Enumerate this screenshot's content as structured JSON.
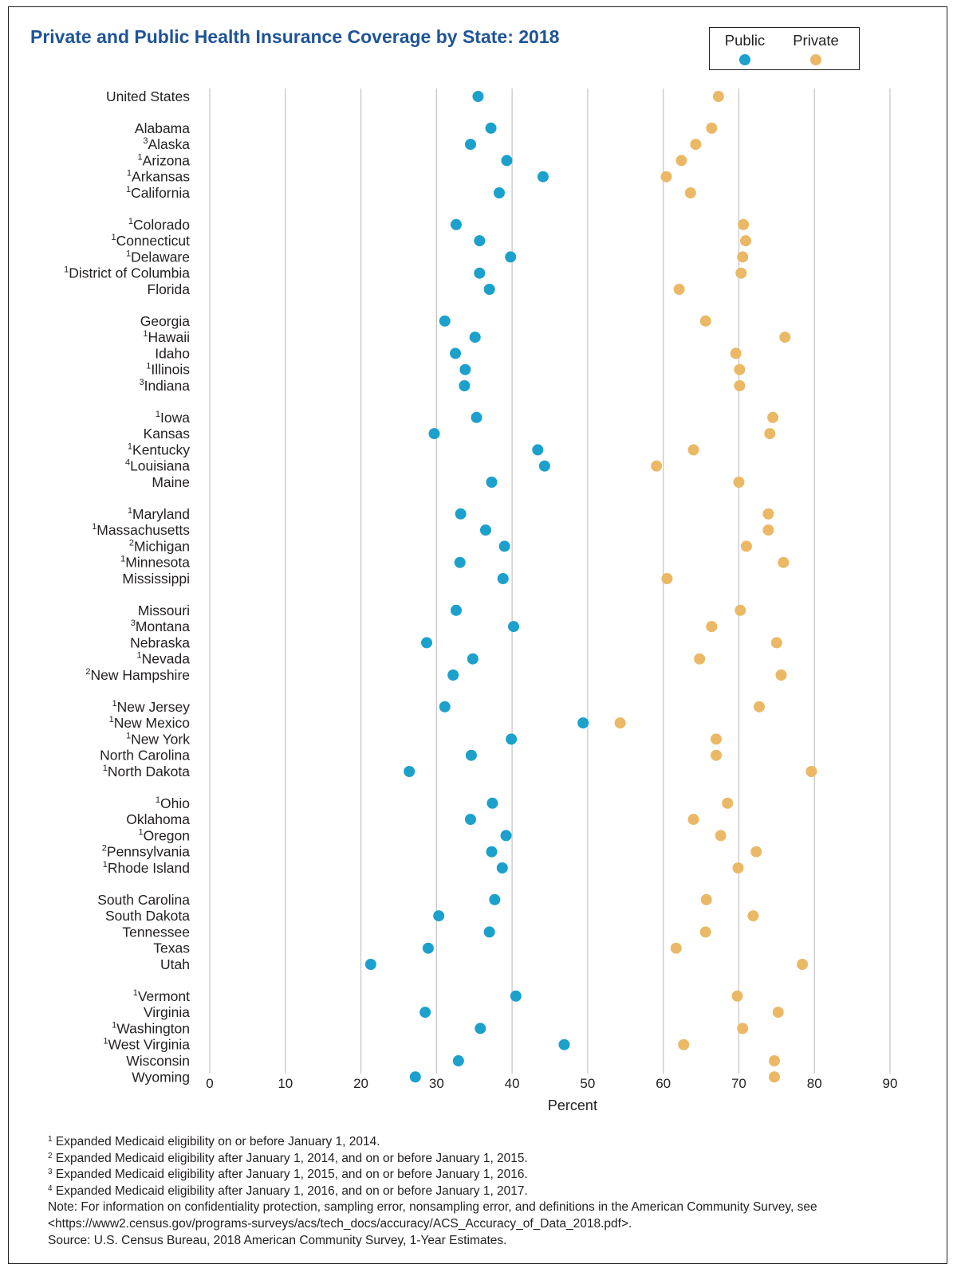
{
  "chart_data": {
    "type": "scatter",
    "title": "Private and Public Health Insurance Coverage by State: 2018",
    "xlabel": "Percent",
    "xlim": [
      0,
      90
    ],
    "xticks": [
      0,
      10,
      20,
      30,
      40,
      50,
      60,
      70,
      80,
      90
    ],
    "grid": "vertical",
    "legend": {
      "placement": "top-right",
      "entries": [
        {
          "name": "Public",
          "color": "#1ba1cb"
        },
        {
          "name": "Private",
          "color": "#ebb866"
        }
      ]
    },
    "series_colors": {
      "public": "#1ba1cb",
      "private": "#ebb866"
    },
    "groups": [
      [
        {
          "label": "United States",
          "sup": "",
          "public": 35.5,
          "private": 67.3
        }
      ],
      [
        {
          "label": "Alabama",
          "sup": "",
          "public": 37.2,
          "private": 66.4
        },
        {
          "label": "Alaska",
          "sup": "3",
          "public": 34.5,
          "private": 64.3
        },
        {
          "label": "Arizona",
          "sup": "1",
          "public": 39.3,
          "private": 62.4
        },
        {
          "label": "Arkansas",
          "sup": "1",
          "public": 44.1,
          "private": 60.4
        },
        {
          "label": "California",
          "sup": "1",
          "public": 38.3,
          "private": 63.6
        }
      ],
      [
        {
          "label": "Colorado",
          "sup": "1",
          "public": 32.6,
          "private": 70.6
        },
        {
          "label": "Connecticut",
          "sup": "1",
          "public": 35.7,
          "private": 70.9
        },
        {
          "label": "Delaware",
          "sup": "1",
          "public": 39.8,
          "private": 70.5
        },
        {
          "label": "District of Columbia",
          "sup": "1",
          "public": 35.7,
          "private": 70.3
        },
        {
          "label": "Florida",
          "sup": "",
          "public": 37.0,
          "private": 62.1
        }
      ],
      [
        {
          "label": "Georgia",
          "sup": "",
          "public": 31.1,
          "private": 65.6
        },
        {
          "label": "Hawaii",
          "sup": "1",
          "public": 35.1,
          "private": 76.1
        },
        {
          "label": "Idaho",
          "sup": "",
          "public": 32.5,
          "private": 69.6
        },
        {
          "label": "Illinois",
          "sup": "1",
          "public": 33.8,
          "private": 70.1
        },
        {
          "label": "Indiana",
          "sup": "3",
          "public": 33.7,
          "private": 70.1
        }
      ],
      [
        {
          "label": "Iowa",
          "sup": "1",
          "public": 35.3,
          "private": 74.5
        },
        {
          "label": "Kansas",
          "sup": "",
          "public": 29.7,
          "private": 74.1
        },
        {
          "label": "Kentucky",
          "sup": "1",
          "public": 43.4,
          "private": 64.0
        },
        {
          "label": "Louisiana",
          "sup": "4",
          "public": 44.3,
          "private": 59.1
        },
        {
          "label": "Maine",
          "sup": "",
          "public": 37.3,
          "private": 70.0
        }
      ],
      [
        {
          "label": "Maryland",
          "sup": "1",
          "public": 33.2,
          "private": 73.9
        },
        {
          "label": "Massachusetts",
          "sup": "1",
          "public": 36.5,
          "private": 73.9
        },
        {
          "label": "Michigan",
          "sup": "2",
          "public": 39.0,
          "private": 71.0
        },
        {
          "label": "Minnesota",
          "sup": "1",
          "public": 33.1,
          "private": 75.9
        },
        {
          "label": "Mississippi",
          "sup": "",
          "public": 38.8,
          "private": 60.5
        }
      ],
      [
        {
          "label": "Missouri",
          "sup": "",
          "public": 32.6,
          "private": 70.2
        },
        {
          "label": "Montana",
          "sup": "3",
          "public": 40.2,
          "private": 66.4
        },
        {
          "label": "Nebraska",
          "sup": "",
          "public": 28.7,
          "private": 75.0
        },
        {
          "label": "Nevada",
          "sup": "1",
          "public": 34.8,
          "private": 64.8
        },
        {
          "label": "New Hampshire",
          "sup": "2",
          "public": 32.2,
          "private": 75.6
        }
      ],
      [
        {
          "label": "New Jersey",
          "sup": "1",
          "public": 31.1,
          "private": 72.7
        },
        {
          "label": "New Mexico",
          "sup": "1",
          "public": 49.4,
          "private": 54.3
        },
        {
          "label": "New York",
          "sup": "1",
          "public": 39.9,
          "private": 67.0
        },
        {
          "label": "North Carolina",
          "sup": "",
          "public": 34.6,
          "private": 67.0
        },
        {
          "label": "North Dakota",
          "sup": "1",
          "public": 26.4,
          "private": 79.6
        }
      ],
      [
        {
          "label": "Ohio",
          "sup": "1",
          "public": 37.4,
          "private": 68.5
        },
        {
          "label": "Oklahoma",
          "sup": "",
          "public": 34.5,
          "private": 64.0
        },
        {
          "label": "Oregon",
          "sup": "1",
          "public": 39.2,
          "private": 67.6
        },
        {
          "label": "Pennsylvania",
          "sup": "2",
          "public": 37.3,
          "private": 72.3
        },
        {
          "label": "Rhode Island",
          "sup": "1",
          "public": 38.7,
          "private": 69.9
        }
      ],
      [
        {
          "label": "South Carolina",
          "sup": "",
          "public": 37.7,
          "private": 65.7
        },
        {
          "label": "South Dakota",
          "sup": "",
          "public": 30.3,
          "private": 71.9
        },
        {
          "label": "Tennessee",
          "sup": "",
          "public": 37.0,
          "private": 65.6
        },
        {
          "label": "Texas",
          "sup": "",
          "public": 28.9,
          "private": 61.7
        },
        {
          "label": "Utah",
          "sup": "",
          "public": 21.3,
          "private": 78.4
        }
      ],
      [
        {
          "label": "Vermont",
          "sup": "1",
          "public": 40.5,
          "private": 69.8
        },
        {
          "label": "Virginia",
          "sup": "",
          "public": 28.5,
          "private": 75.2
        },
        {
          "label": "Washington",
          "sup": "1",
          "public": 35.8,
          "private": 70.5
        },
        {
          "label": "West Virginia",
          "sup": "1",
          "public": 46.9,
          "private": 62.7
        },
        {
          "label": "Wisconsin",
          "sup": "",
          "public": 32.9,
          "private": 74.7
        },
        {
          "label": "Wyoming",
          "sup": "",
          "public": 27.2,
          "private": 74.7
        }
      ]
    ]
  },
  "footnotes": [
    {
      "mark": "1",
      "text": "Expanded Medicaid eligibility on or before January 1, 2014."
    },
    {
      "mark": "2",
      "text": "Expanded Medicaid eligibility after January 1, 2014, and on or before January 1, 2015."
    },
    {
      "mark": "3",
      "text": "Expanded Medicaid eligibility after January 1, 2015, and on or before January  1, 2016."
    },
    {
      "mark": "4",
      "text": "Expanded Medicaid eligibility after January 1, 2016, and on or before January 1, 2017."
    }
  ],
  "note": "Note: For information on confidentiality protection, sampling error, nonsampling error, and definitions in the American Community Survey, see <https://www2.census.gov/programs-surveys/acs/tech_docs/accuracy/ACS_Accuracy_of_Data_2018.pdf>.",
  "source": "Source: U.S. Census Bureau, 2018 American Community Survey, 1-Year Estimates."
}
